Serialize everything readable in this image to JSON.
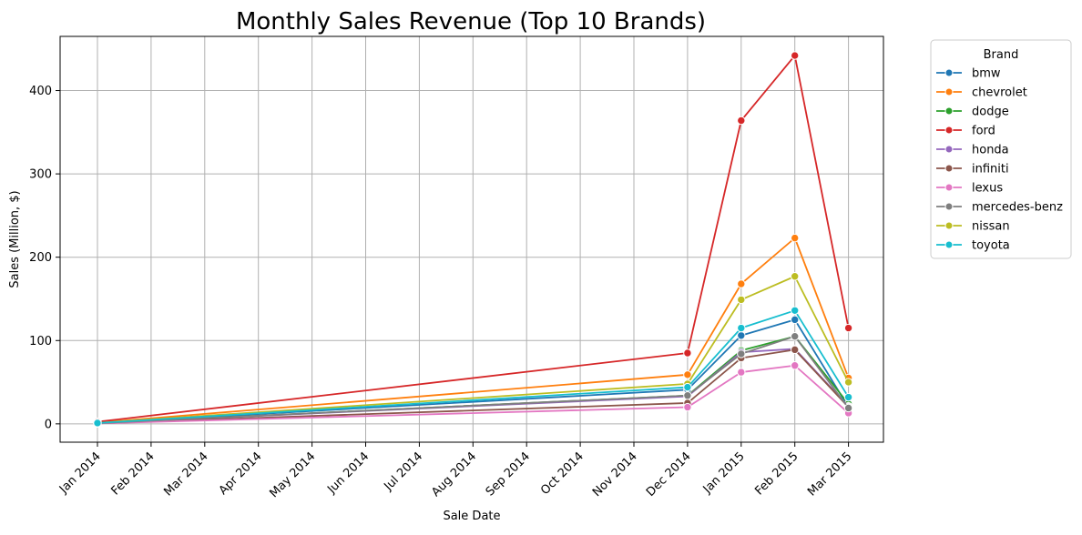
{
  "chart_data": {
    "type": "line",
    "title": "Monthly Sales Revenue (Top 10 Brands)",
    "xlabel": "Sale Date",
    "ylabel": "Sales (Million, $)",
    "categories": [
      "Jan 2014",
      "Feb 2014",
      "Mar 2014",
      "Apr 2014",
      "May 2014",
      "Jun 2014",
      "Jul 2014",
      "Aug 2014",
      "Sep 2014",
      "Oct 2014",
      "Nov 2014",
      "Dec 2014",
      "Jan 2015",
      "Feb 2015",
      "Mar 2015"
    ],
    "x": [
      "2014-01",
      "2014-12",
      "2015-01",
      "2015-02",
      "2015-03"
    ],
    "yticks": [
      0,
      100,
      200,
      300,
      400
    ],
    "ylim": [
      -22,
      465
    ],
    "grid": true,
    "legend": {
      "title": "Brand",
      "placement": "outside-top-right"
    },
    "series": [
      {
        "name": "bmw",
        "color": "#1f77b4",
        "values": [
          0.9,
          41,
          106,
          125,
          20
        ]
      },
      {
        "name": "chevrolet",
        "color": "#ff7f0e",
        "values": [
          1.5,
          59,
          168,
          223,
          55
        ]
      },
      {
        "name": "dodge",
        "color": "#2ca02c",
        "values": [
          0.8,
          34,
          88,
          105,
          24
        ]
      },
      {
        "name": "ford",
        "color": "#d62728",
        "values": [
          2.5,
          85,
          364,
          442,
          115
        ]
      },
      {
        "name": "honda",
        "color": "#9467bd",
        "values": [
          0.8,
          33,
          86,
          90,
          21
        ]
      },
      {
        "name": "infiniti",
        "color": "#8c564b",
        "values": [
          0.6,
          25,
          79,
          89,
          20
        ]
      },
      {
        "name": "lexus",
        "color": "#e377c2",
        "values": [
          0.5,
          20,
          62,
          70,
          13
        ]
      },
      {
        "name": "mercedes-benz",
        "color": "#7f7f7f",
        "values": [
          0.7,
          34,
          84,
          105,
          19
        ]
      },
      {
        "name": "nissan",
        "color": "#bcbd22",
        "values": [
          1.2,
          48,
          149,
          177,
          50
        ]
      },
      {
        "name": "toyota",
        "color": "#17becf",
        "values": [
          1.0,
          44,
          115,
          136,
          32
        ]
      }
    ]
  }
}
